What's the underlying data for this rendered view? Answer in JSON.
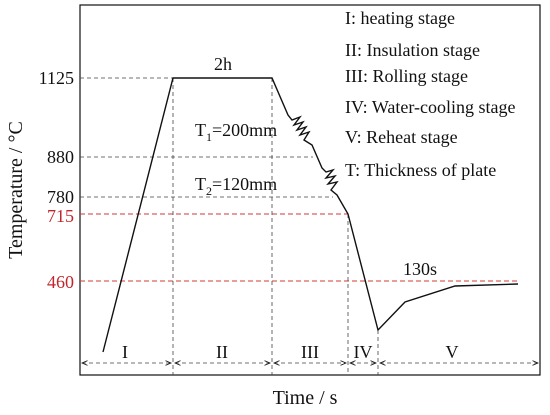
{
  "diagram": {
    "y_axis_label": "Temperature / °C",
    "x_axis_label": "Time / s",
    "temperature_labels": [
      "1125",
      "880",
      "780",
      "715",
      "460"
    ],
    "stages": [
      "I",
      "II",
      "III",
      "IV",
      "V"
    ],
    "legend": [
      "I: heating stage",
      "II: Insulation stage",
      "III: Rolling stage",
      "IV: Water-cooling stage",
      "V: Reheat stage",
      "T: Thickness of plate"
    ],
    "annotations": {
      "hold_time": "2h",
      "cooling_time": "130s",
      "thickness_1": {
        "symbol": "T",
        "subscript": "1",
        "text": "=200mm"
      },
      "thickness_2": {
        "symbol": "T",
        "subscript": "2",
        "text": "=120mm"
      }
    }
  }
}
